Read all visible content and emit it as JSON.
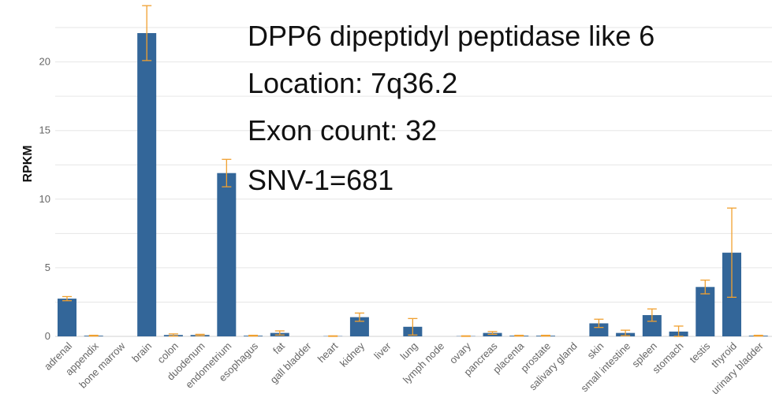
{
  "chart_data": {
    "type": "bar",
    "ylabel": "RPKM",
    "xlabel": "",
    "ylim": [
      0,
      23.5
    ],
    "yticks": [
      0,
      5,
      10,
      15,
      20
    ],
    "grid": true,
    "bar_color": "#336699",
    "error_color": "#f0a030",
    "annotations": [
      "DPP6 dipeptidyl peptidase like 6",
      "Location: 7q36.2",
      "Exon count: 32",
      "SNV-1=681"
    ],
    "categories": [
      "adrenal",
      "appendix",
      "bone marrow",
      "brain",
      "colon",
      "duodenum",
      "endometrium",
      "esophagus",
      "fat",
      "gall bladder",
      "heart",
      "kidney",
      "liver",
      "lung",
      "lymph node",
      "ovary",
      "pancreas",
      "placenta",
      "prostate",
      "salivary gland",
      "skin",
      "small intestine",
      "spleen",
      "stomach",
      "testis",
      "thyroid",
      "urinary bladder"
    ],
    "values": [
      2.75,
      0.05,
      0.0,
      22.1,
      0.1,
      0.1,
      11.9,
      0.05,
      0.25,
      0.0,
      0.02,
      1.4,
      0.0,
      0.7,
      0.0,
      0.02,
      0.25,
      0.05,
      0.05,
      0.0,
      0.95,
      0.25,
      1.55,
      0.35,
      3.6,
      6.1,
      0.05
    ],
    "errors": [
      0.15,
      0.03,
      0.0,
      2.0,
      0.08,
      0.05,
      1.0,
      0.03,
      0.15,
      0.0,
      0.02,
      0.3,
      0.0,
      0.6,
      0.0,
      0.02,
      0.1,
      0.03,
      0.03,
      0.0,
      0.3,
      0.2,
      0.45,
      0.4,
      0.5,
      3.25,
      0.03
    ]
  }
}
